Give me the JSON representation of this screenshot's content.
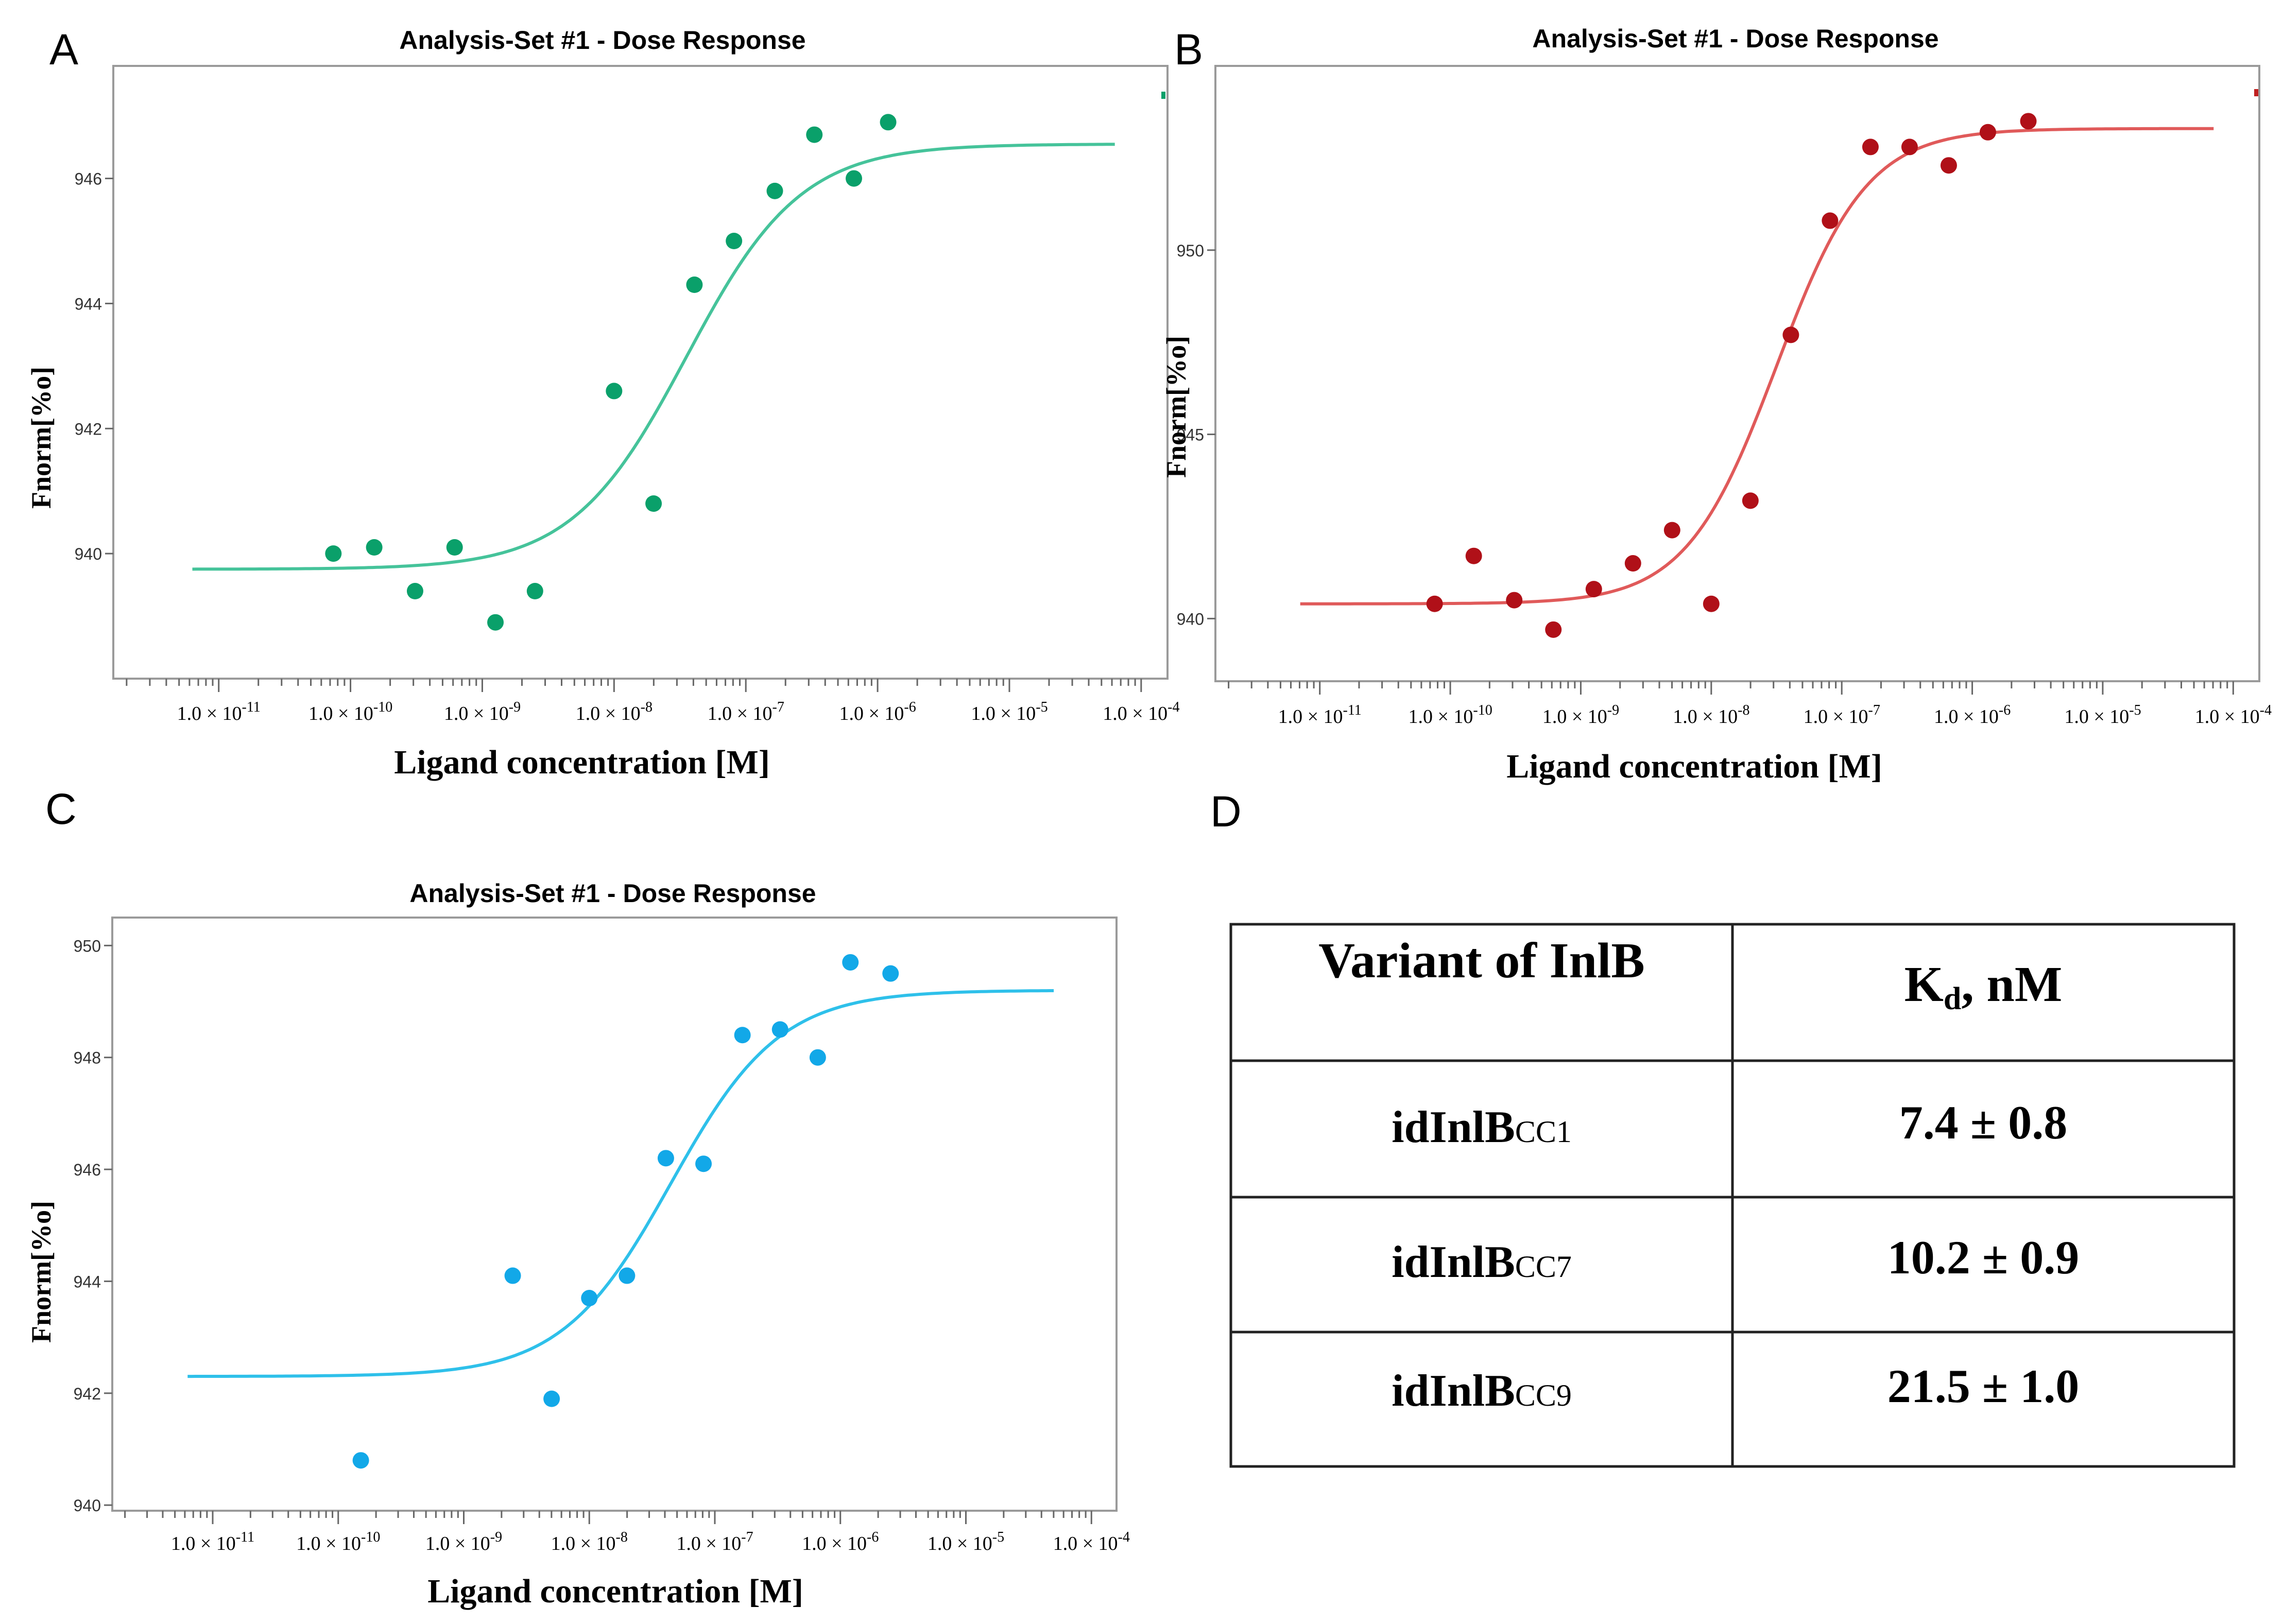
{
  "panels": [
    {
      "letter": "A"
    },
    {
      "letter": "B"
    },
    {
      "letter": "C"
    },
    {
      "letter": "D"
    }
  ],
  "chart_data": [
    {
      "type": "scatter",
      "panel": "A",
      "title": "Analysis-Set #1 - Dose Response",
      "xlabel": "Ligand concentration [M]",
      "ylabel": "Fnorm[%o]",
      "xscale": "log",
      "xlim_log10": [
        -11.8,
        -3.8
      ],
      "ylim": [
        938,
        947.8
      ],
      "y_ticks": [
        940,
        942,
        944,
        946
      ],
      "x_ticks_exponents": [
        "-11",
        "-10",
        "-9",
        "-8",
        "-7",
        "-6",
        "-5",
        "-4"
      ],
      "x_tick_mantissa": "1.0 × 10",
      "color": "#0aa06a",
      "fit_color": "#45c39a",
      "points": {
        "log10_x": [
          -10.13,
          -9.82,
          -9.51,
          -9.21,
          -8.9,
          -8.6,
          -8.0,
          -7.7,
          -7.39,
          -7.09,
          -6.78,
          -6.48,
          -6.18,
          -5.92
        ],
        "y": [
          940.0,
          940.1,
          939.4,
          940.1,
          938.9,
          939.4,
          942.6,
          940.8,
          944.3,
          945.0,
          945.8,
          946.7,
          946.0,
          946.9
        ]
      },
      "fit": {
        "bottom": 939.75,
        "top": 946.55,
        "log10_ec50": -7.45,
        "hill": 1.0,
        "log10_x_range": [
          -11.2,
          -4.2
        ]
      }
    },
    {
      "type": "scatter",
      "panel": "B",
      "title": "Analysis-Set #1 - Dose Response",
      "xlabel": "Ligand concentration [M]",
      "ylabel": "Fnorm[%o]",
      "xscale": "log",
      "xlim_log10": [
        -11.8,
        -3.8
      ],
      "ylim": [
        938.3,
        955.0
      ],
      "y_ticks": [
        940,
        945,
        950
      ],
      "x_ticks_exponents": [
        "-11",
        "-10",
        "-9",
        "-8",
        "-7",
        "-6",
        "-5",
        "-4"
      ],
      "x_tick_mantissa": "1.0 × 10",
      "color": "#b01018",
      "fit_color": "#e05a5a",
      "points": {
        "log10_x": [
          -10.12,
          -9.82,
          -9.51,
          -9.21,
          -8.9,
          -8.6,
          -8.3,
          -8.0,
          -7.7,
          -7.39,
          -7.09,
          -6.78,
          -6.48,
          -6.18,
          -5.88,
          -5.57
        ],
        "y": [
          940.4,
          941.7,
          940.5,
          939.7,
          940.8,
          941.5,
          942.4,
          940.4,
          943.2,
          947.7,
          950.8,
          952.8,
          952.8,
          952.3,
          953.2,
          953.5
        ]
      },
      "fit": {
        "bottom": 940.4,
        "top": 953.3,
        "log10_ec50": -7.5,
        "hill": 1.25,
        "log10_x_range": [
          -11.15,
          -4.15
        ]
      }
    },
    {
      "type": "scatter",
      "panel": "C",
      "title": "Analysis-Set #1 - Dose Response",
      "xlabel": "Ligand concentration [M]",
      "ylabel": "Fnorm[%o]",
      "xscale": "log",
      "xlim_log10": [
        -11.8,
        -3.8
      ],
      "ylim": [
        939.9,
        950.5
      ],
      "y_ticks": [
        940,
        942,
        944,
        946,
        948,
        950
      ],
      "x_ticks_exponents": [
        "-11",
        "-10",
        "-9",
        "-8",
        "-7",
        "-6",
        "-5",
        "-4"
      ],
      "x_tick_mantissa": "1.0 × 10",
      "color": "#12a8e8",
      "fit_color": "#2ec0ea",
      "points": {
        "log10_x": [
          -9.82,
          -8.61,
          -8.3,
          -8.0,
          -7.7,
          -7.39,
          -7.09,
          -6.78,
          -6.48,
          -6.18,
          -5.92,
          -5.6
        ],
        "y": [
          940.8,
          944.1,
          941.9,
          943.7,
          944.1,
          946.2,
          946.1,
          948.4,
          948.5,
          948.0,
          949.7,
          949.5
        ]
      },
      "fit": {
        "bottom": 942.3,
        "top": 949.2,
        "log10_ec50": -7.35,
        "hill": 1.0,
        "log10_x_range": [
          -11.2,
          -4.3
        ]
      }
    },
    {
      "type": "table",
      "panel": "D",
      "columns": [
        {
          "main": "Variant of InlB",
          "sub": ""
        },
        {
          "main": "K",
          "sub": "d",
          "suffix": ", nM"
        }
      ],
      "rows": [
        {
          "variant": "idInlB",
          "variant_sub": "CC1",
          "kd": "7.4 ± 0.8"
        },
        {
          "variant": "idInlB",
          "variant_sub": "CC7",
          "kd": "10.2 ± 0.9"
        },
        {
          "variant": "idInlB",
          "variant_sub": "CC9",
          "kd": "21.5 ± 1.0"
        }
      ]
    }
  ]
}
